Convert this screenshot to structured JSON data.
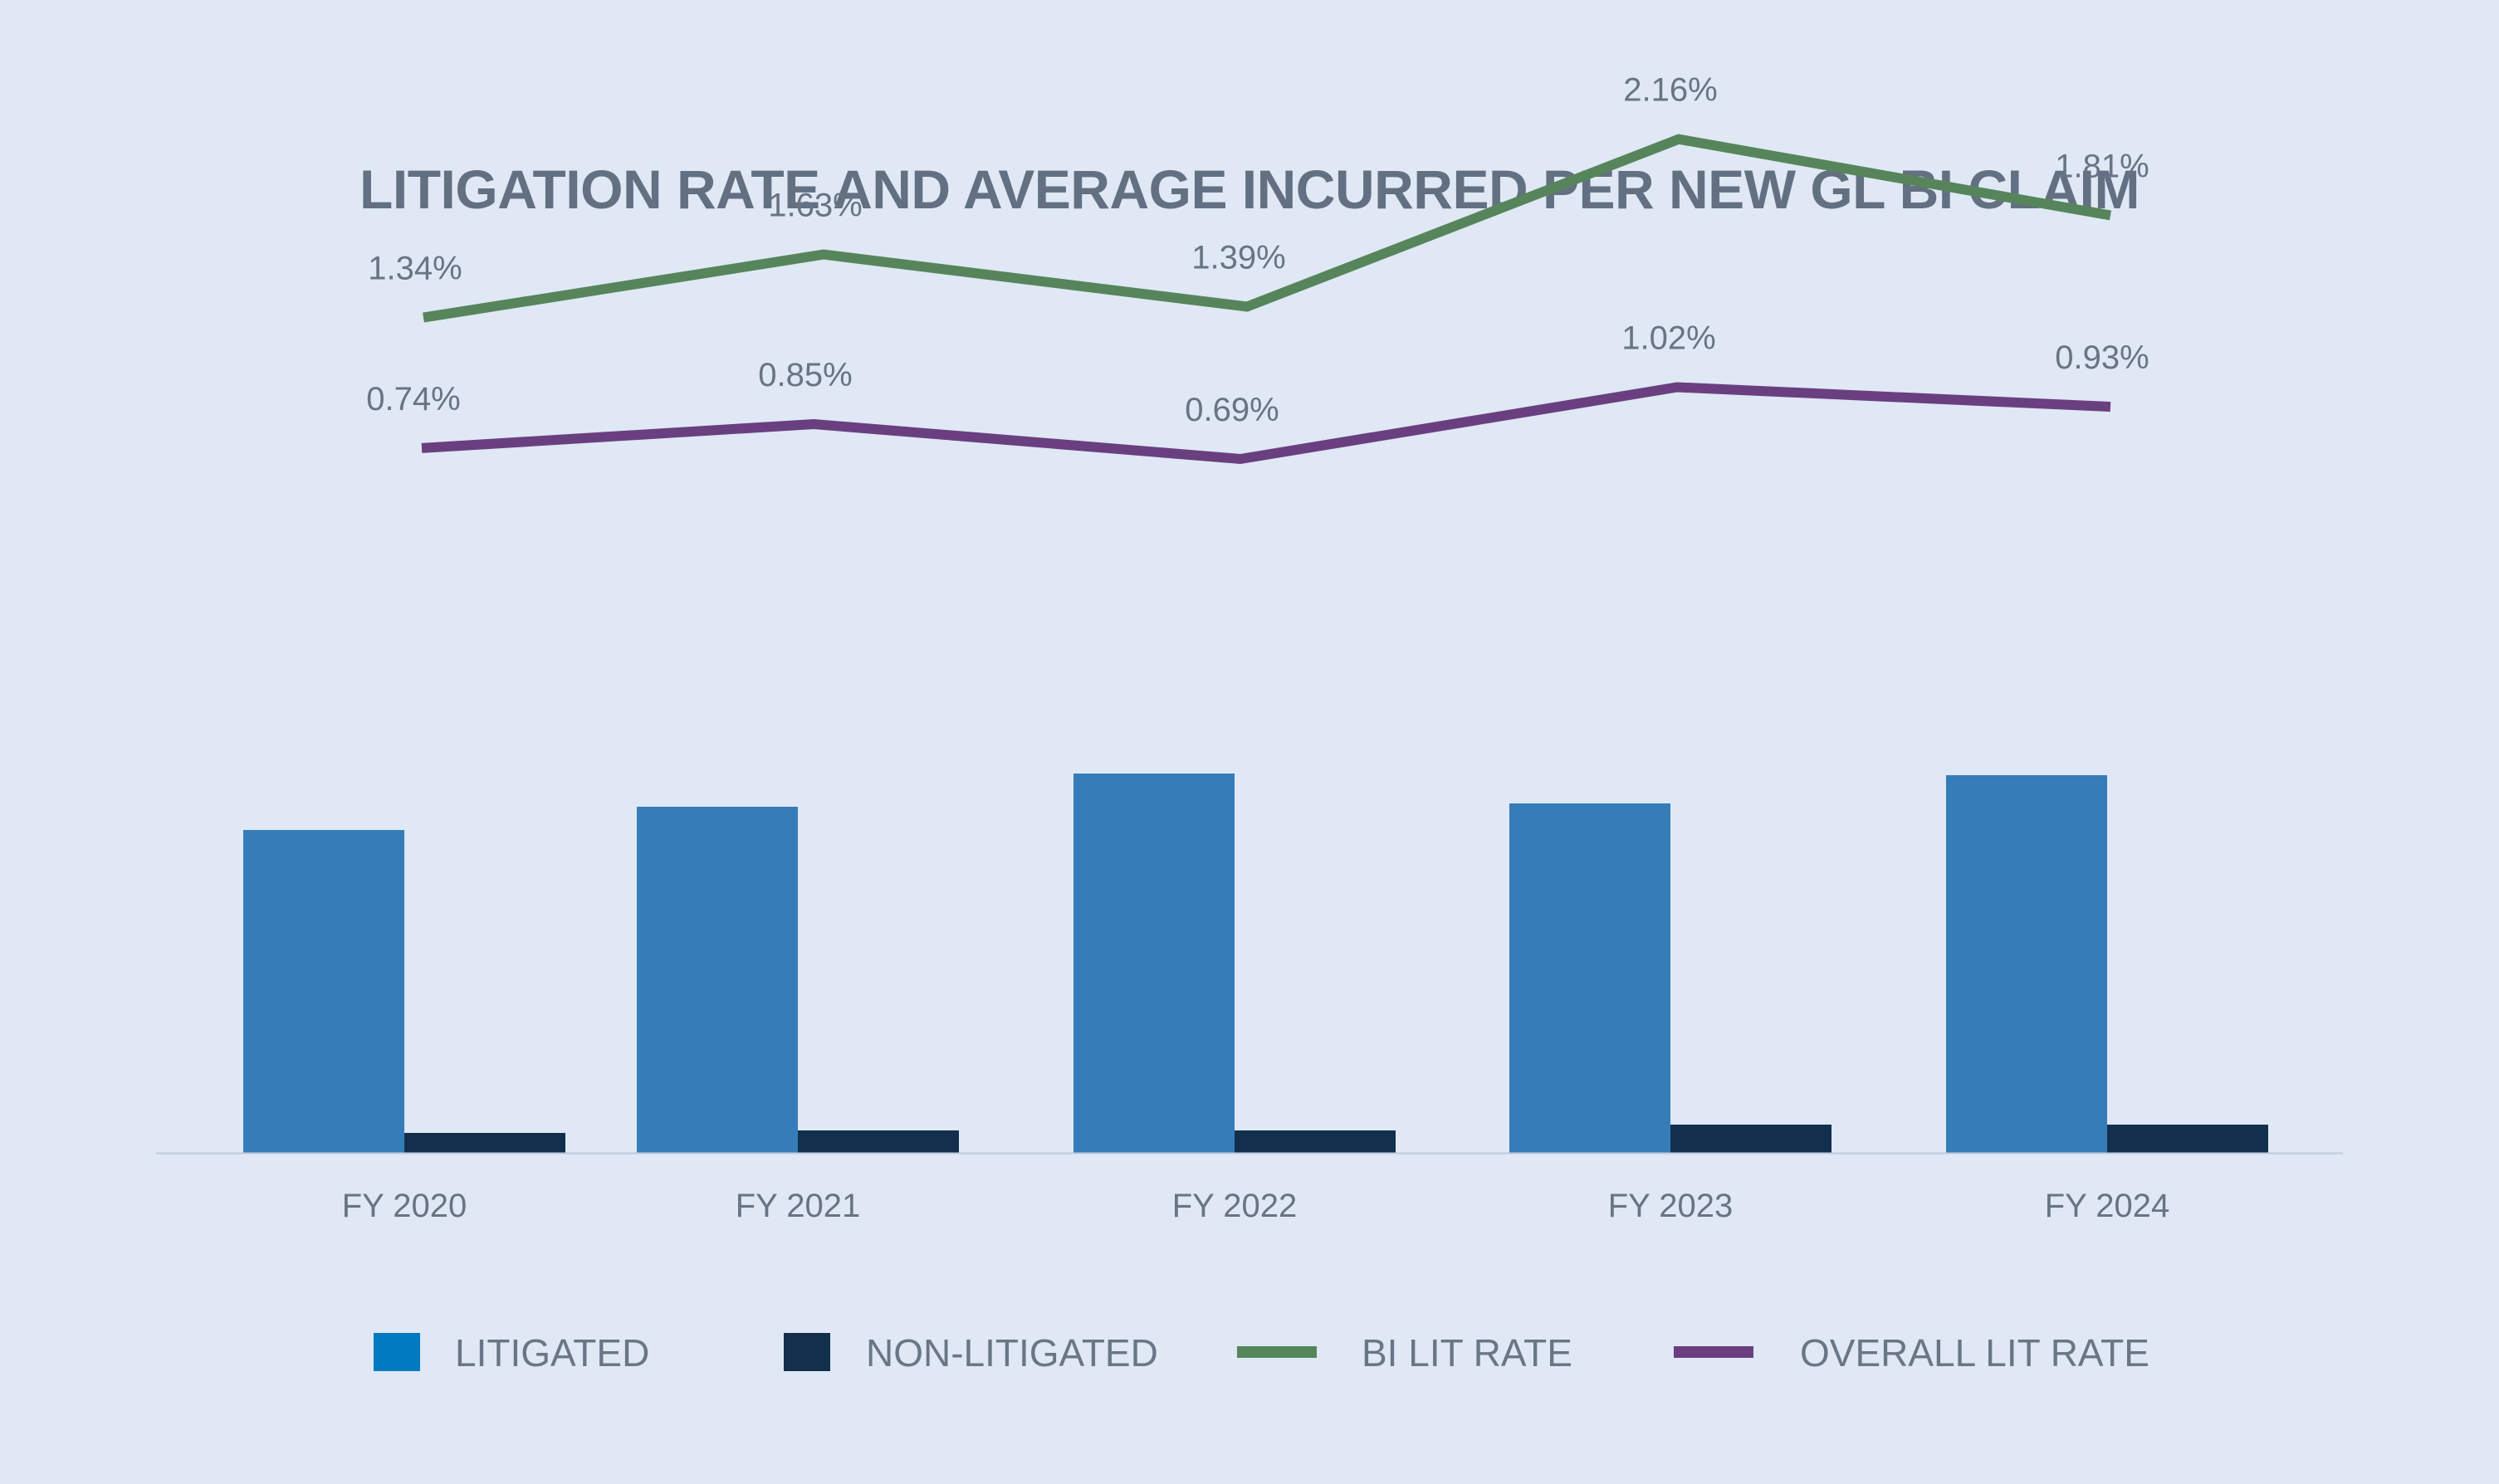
{
  "chart_data": {
    "type": "bar",
    "title": "LITIGATION RATE AND AVERAGE INCURRED PER NEW GL BI CLAIM",
    "categories": [
      "FY 2020",
      "FY 2021",
      "FY 2022",
      "FY 2023",
      "FY 2024"
    ],
    "bar_series": [
      {
        "name": "LITIGATED",
        "color": "#367cb8",
        "values": [
          389,
          417,
          457,
          421,
          455
        ]
      },
      {
        "name": "NON-LITIGATED",
        "color": "#12304d",
        "values": [
          24,
          27,
          27,
          34,
          34
        ]
      }
    ],
    "bar_axis": {
      "shown": false,
      "ylim": [
        0,
        600
      ],
      "unit": "relative (no axis shown)"
    },
    "line_series": [
      {
        "name": "BI LIT RATE",
        "color": "#56855b",
        "values": [
          1.34,
          1.63,
          1.39,
          2.16,
          1.81
        ],
        "labels": [
          "1.34%",
          "1.63%",
          "1.39%",
          "2.16%",
          "1.81%"
        ]
      },
      {
        "name": "OVERALL LIT RATE",
        "color": "#6a3f80",
        "values": [
          0.74,
          0.85,
          0.69,
          1.02,
          0.93
        ],
        "labels": [
          "0.74%",
          "0.85%",
          "0.69%",
          "1.02%",
          "0.93%"
        ]
      }
    ],
    "line_axis": {
      "shown": false,
      "ylim": [
        -2.5,
        2.8
      ],
      "unit": "%"
    },
    "grid": false,
    "legend_position": "bottom",
    "background_color": "#dfe8f4",
    "baseline_color": "#bfcbda"
  },
  "legend": {
    "items": [
      {
        "label": "LITIGATED",
        "color": "#0079bf",
        "kind": "box"
      },
      {
        "label": "NON-LITIGATED",
        "color": "#12304d",
        "kind": "box"
      },
      {
        "label": "BI LIT RATE",
        "color": "#56855b",
        "kind": "line"
      },
      {
        "label": "OVERALL LIT RATE",
        "color": "#6a3f80",
        "kind": "line"
      }
    ]
  }
}
